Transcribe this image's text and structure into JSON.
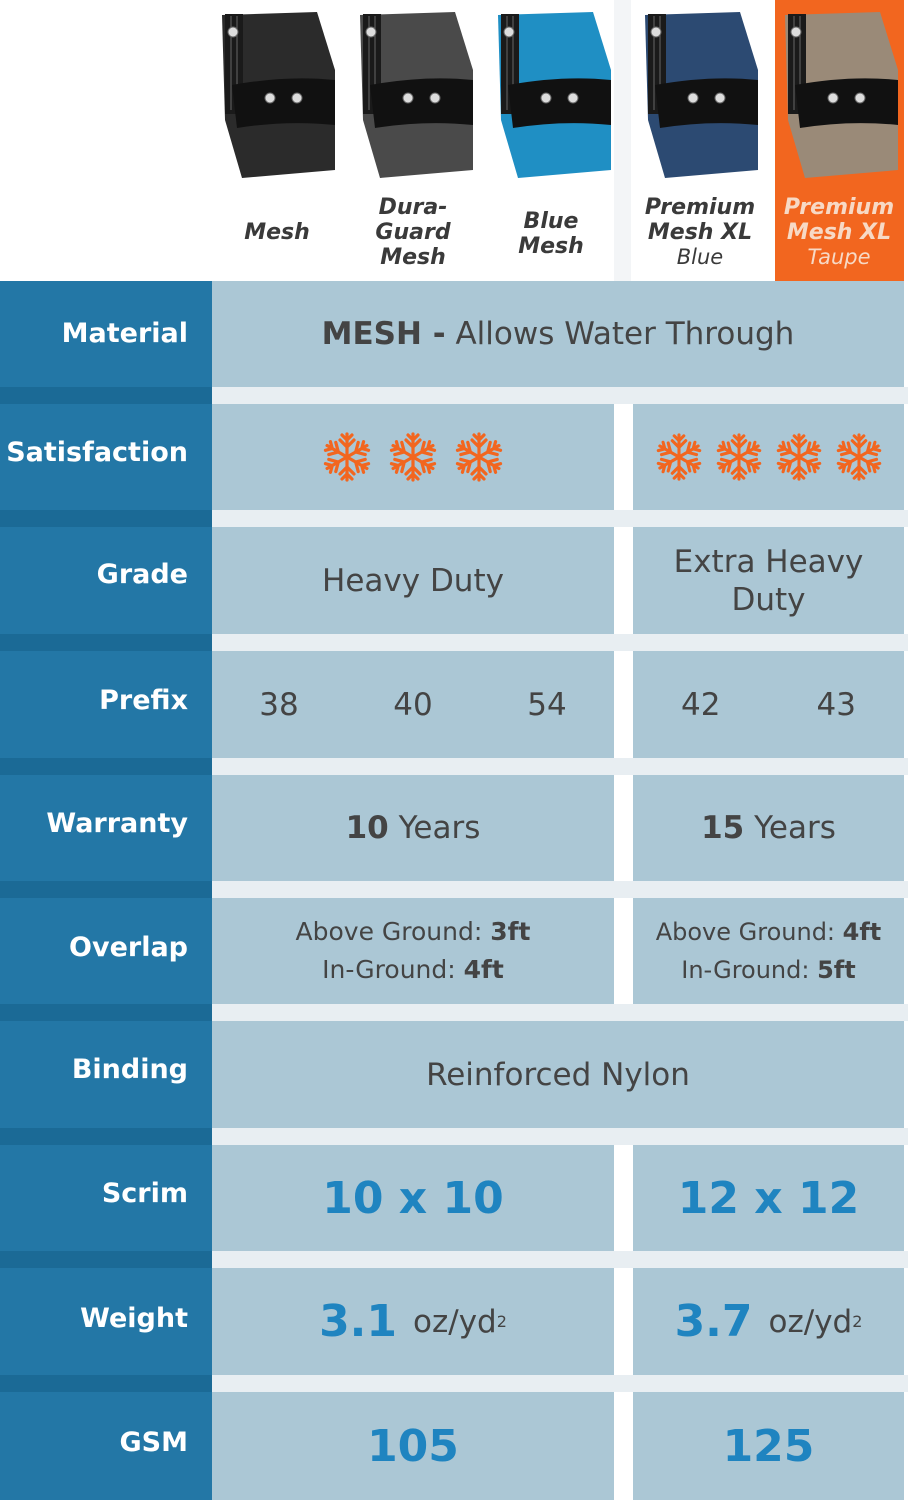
{
  "products": [
    {
      "name_lines": [
        "Mesh"
      ],
      "sub": "",
      "color": "#2b2b2b"
    },
    {
      "name_lines": [
        "Dura-",
        "Guard",
        "Mesh"
      ],
      "sub": "",
      "color": "#4a4a4a"
    },
    {
      "name_lines": [
        "Blue",
        "Mesh"
      ],
      "sub": "",
      "color": "#1f8fc4"
    },
    {
      "name_lines": [
        "Premium",
        "Mesh XL"
      ],
      "sub": "Blue",
      "color": "#2c4a72"
    },
    {
      "name_lines": [
        "Premium",
        "Mesh XL"
      ],
      "sub": "Taupe",
      "color": "#9a8a78"
    }
  ],
  "rows": {
    "material": {
      "label": "Material",
      "strong": "MESH -",
      "text": " Allows Water Through"
    },
    "satisfaction": {
      "label": "Satisfaction",
      "left_count": 3,
      "right_count": 4,
      "icon": "snowflake-icon",
      "color": "#f2661f"
    },
    "grade": {
      "label": "Grade",
      "left": "Heavy Duty",
      "right": "Extra Heavy Duty"
    },
    "prefix": {
      "label": "Prefix",
      "left": [
        "38",
        "40",
        "54"
      ],
      "right": [
        "42",
        "43"
      ]
    },
    "warranty": {
      "label": "Warranty",
      "left_num": "10",
      "left_unit": " Years",
      "right_num": "15",
      "right_unit": " Years"
    },
    "overlap": {
      "label": "Overlap",
      "left": {
        "ag_label": "Above Ground: ",
        "ag_val": "3ft",
        "ig_label": "In-Ground: ",
        "ig_val": "4ft"
      },
      "right": {
        "ag_label": "Above Ground: ",
        "ag_val": "4ft",
        "ig_label": "In-Ground: ",
        "ig_val": "5ft"
      }
    },
    "binding": {
      "label": "Binding",
      "text": "Reinforced Nylon"
    },
    "scrim": {
      "label": "Scrim",
      "left": "10 x 10",
      "right": "12 x 12"
    },
    "weight": {
      "label": "Weight",
      "left": "3.1",
      "right": "3.7",
      "unit": "oz/yd",
      "sup": "2"
    },
    "gsm": {
      "label": "GSM",
      "left": "105",
      "right": "125"
    }
  },
  "colors": {
    "accent": "#f2661f",
    "side": "#2377a6",
    "cell": "#abc7d5",
    "value_blue": "#1f84c0"
  }
}
